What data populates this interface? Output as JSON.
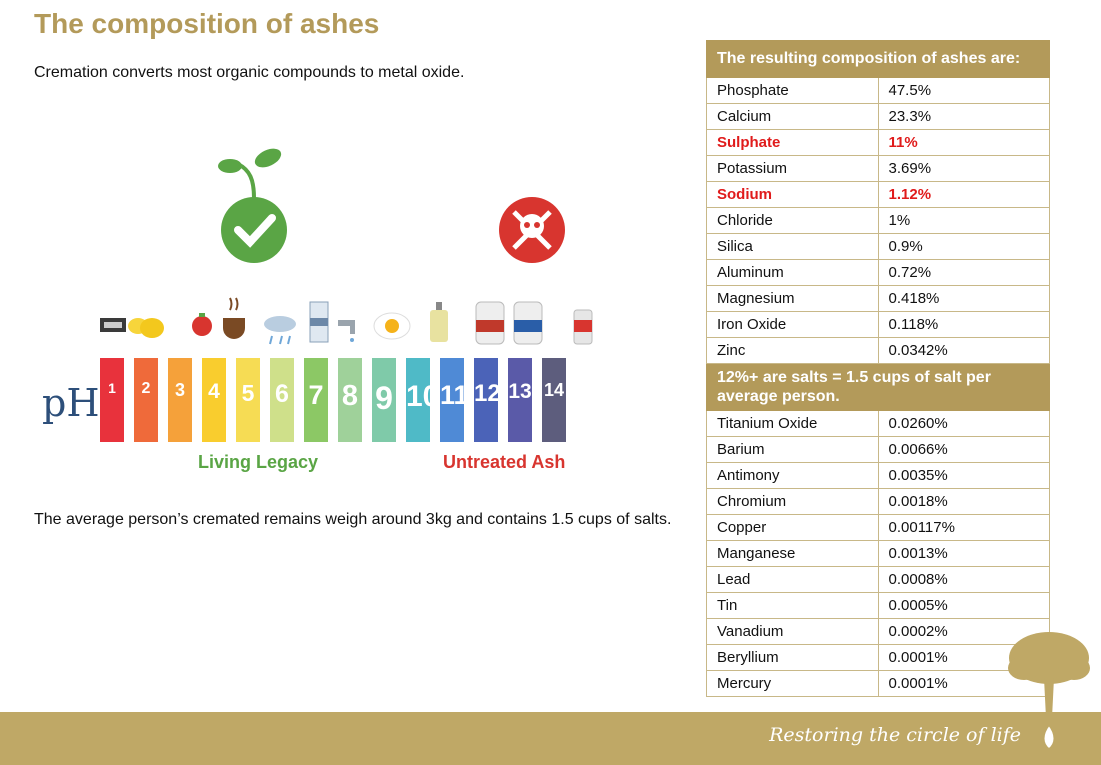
{
  "page": {
    "title": "The composition of ashes",
    "intro": "Cremation converts most organic compounds to metal oxide.",
    "outro": "The average person’s cremated remains weigh around 3kg and contains 1.5 cups of salts."
  },
  "figure": {
    "ph_label": "pH",
    "bars": [
      {
        "label": "1",
        "color": "#e8323c"
      },
      {
        "label": "2",
        "color": "#ef6a3a"
      },
      {
        "label": "3",
        "color": "#f5a13a"
      },
      {
        "label": "4",
        "color": "#f9cd2e"
      },
      {
        "label": "5",
        "color": "#f6dc54"
      },
      {
        "label": "6",
        "color": "#cfe08a"
      },
      {
        "label": "7",
        "color": "#8cc865"
      },
      {
        "label": "8",
        "color": "#9fd19a"
      },
      {
        "label": "9",
        "color": "#7fcaa9"
      },
      {
        "label": "10",
        "color": "#4fbac7"
      },
      {
        "label": "11",
        "color": "#4f8ad6"
      },
      {
        "label": "12",
        "color": "#4b63b8"
      },
      {
        "label": "13",
        "color": "#5a5aa8"
      },
      {
        "label": "14",
        "color": "#5d5d7d"
      }
    ],
    "good_label": "Living Legacy",
    "bad_label": "Untreated Ash",
    "icons": [
      "battery-icon",
      "lemon-icon",
      "tomato-icon",
      "coffee-icon",
      "rain-cloud-icon",
      "milk-carton-icon",
      "water-tap-icon",
      "egg-icon",
      "soap-bottle-icon",
      "cleaner-jug-icon",
      "bleach-jug-icon",
      "drain-cleaner-icon",
      "sprout-check-icon",
      "skull-crossbones-icon"
    ]
  },
  "table": {
    "header": "The resulting composition of ashes are:",
    "rows_top": [
      {
        "name": "Phosphate",
        "value": "47.5%",
        "highlight": false
      },
      {
        "name": "Calcium",
        "value": "23.3%",
        "highlight": false
      },
      {
        "name": "Sulphate",
        "value": "11%",
        "highlight": true
      },
      {
        "name": "Potassium",
        "value": "3.69%",
        "highlight": false
      },
      {
        "name": "Sodium",
        "value": "1.12%",
        "highlight": true
      },
      {
        "name": "Chloride",
        "value": "1%",
        "highlight": false
      },
      {
        "name": "Silica",
        "value": "0.9%",
        "highlight": false
      },
      {
        "name": "Aluminum",
        "value": "0.72%",
        "highlight": false
      },
      {
        "name": "Magnesium",
        "value": "0.418%",
        "highlight": false
      },
      {
        "name": "Iron Oxide",
        "value": "0.118%",
        "highlight": false
      },
      {
        "name": "Zinc",
        "value": "0.0342%",
        "highlight": false
      }
    ],
    "subheader": "12%+ are salts = 1.5 cups of salt per average person.",
    "rows_bottom": [
      {
        "name": "Titanium Oxide",
        "value": "0.0260%",
        "highlight": false
      },
      {
        "name": "Barium",
        "value": "0.0066%",
        "highlight": false
      },
      {
        "name": "Antimony",
        "value": "0.0035%",
        "highlight": false
      },
      {
        "name": "Chromium",
        "value": "0.0018%",
        "highlight": false
      },
      {
        "name": "Copper",
        "value": "0.00117%",
        "highlight": false
      },
      {
        "name": "Manganese",
        "value": "0.0013%",
        "highlight": false
      },
      {
        "name": "Lead",
        "value": "0.0008%",
        "highlight": false
      },
      {
        "name": "Tin",
        "value": "0.0005%",
        "highlight": false
      },
      {
        "name": "Vanadium",
        "value": "0.0002%",
        "highlight": false
      },
      {
        "name": "Beryllium",
        "value": "0.0001%",
        "highlight": false
      },
      {
        "name": "Mercury",
        "value": "0.0001%",
        "highlight": false
      }
    ]
  },
  "footer": {
    "tagline": "Restoring the circle of life",
    "logo_icon": "tree-icon",
    "color": "#bfa866"
  },
  "colors": {
    "accent": "#b39a5a",
    "highlight": "#e01b1b"
  }
}
